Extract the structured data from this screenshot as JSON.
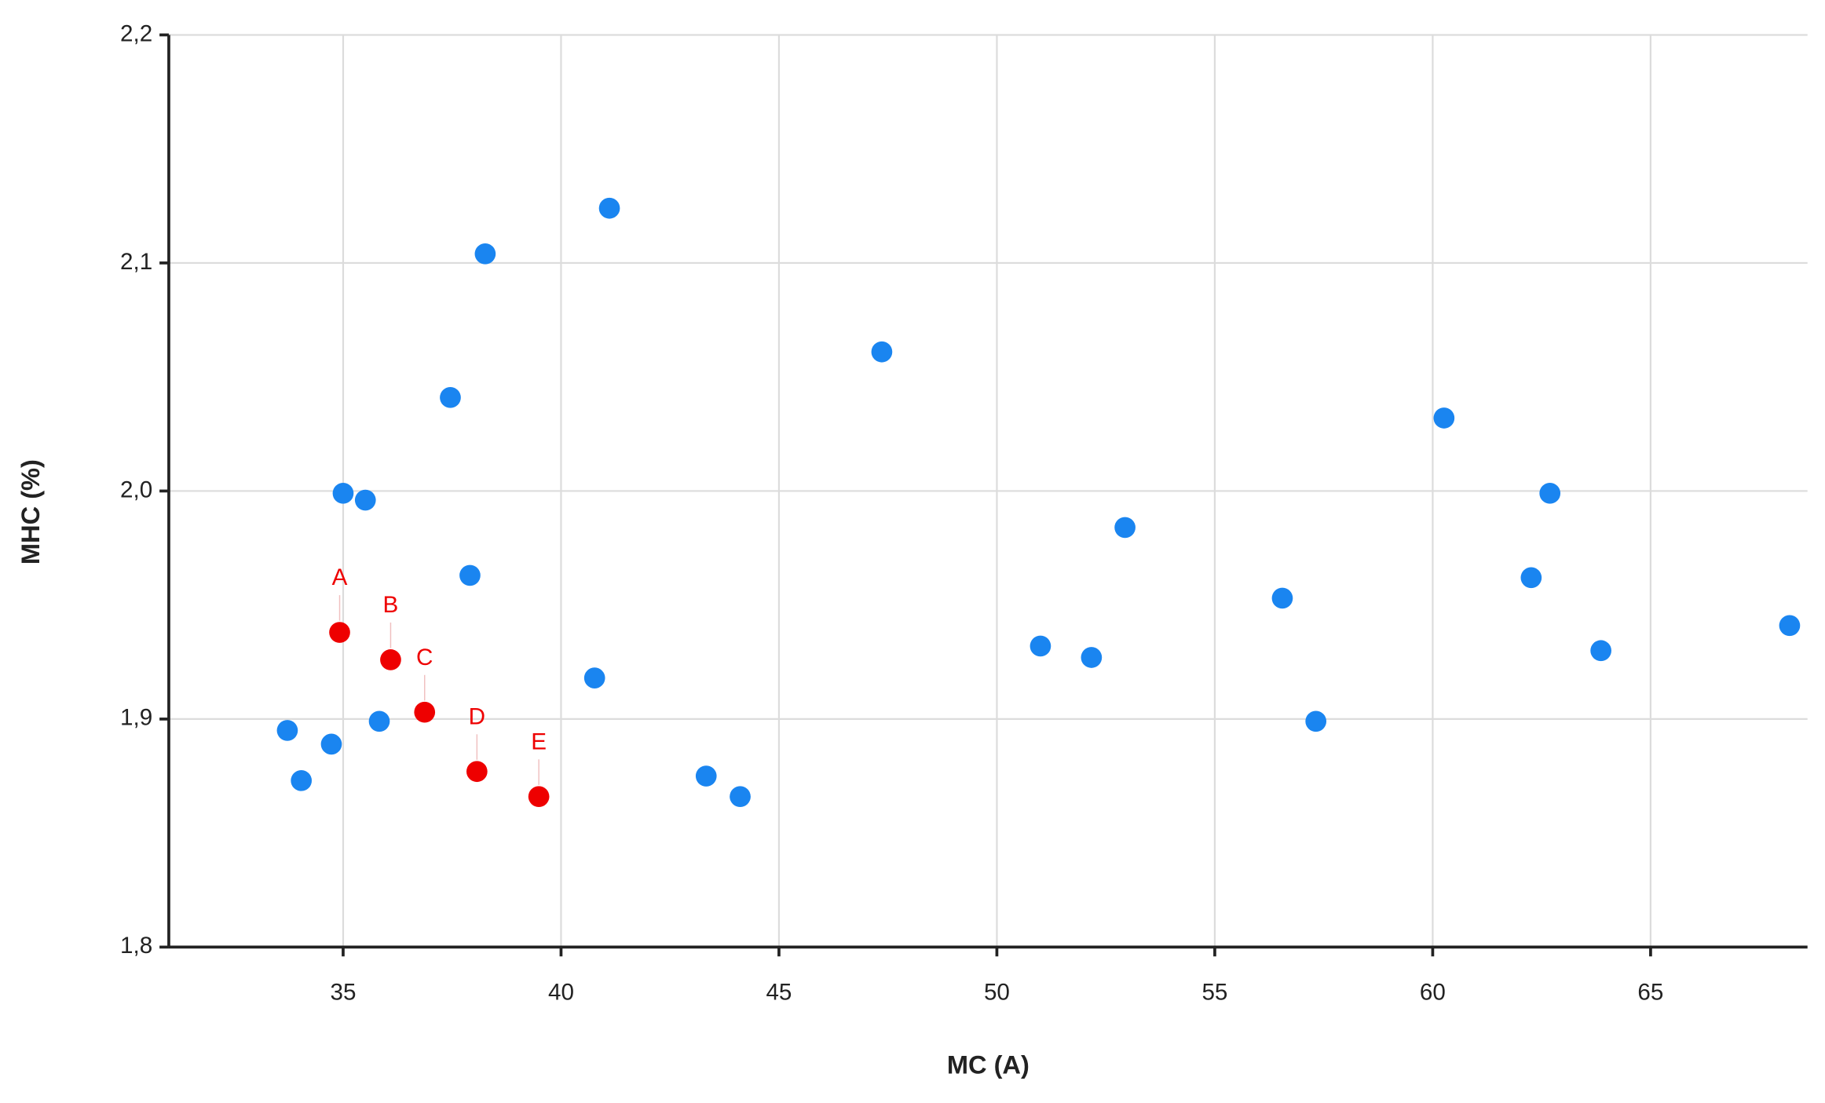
{
  "chart_data": {
    "type": "scatter",
    "x_label": "MC (A)",
    "y_label": "MHC (%)",
    "xlim": [
      31,
      68.6
    ],
    "ylim": [
      1.8,
      2.2
    ],
    "xticks": [
      35,
      40,
      45,
      50,
      55,
      60,
      65
    ],
    "yticks": [
      {
        "value": 1.8,
        "label": "1,8"
      },
      {
        "value": 1.9,
        "label": "1,9"
      },
      {
        "value": 2.0,
        "label": "2,0"
      },
      {
        "value": 2.1,
        "label": "2,1"
      },
      {
        "value": 2.2,
        "label": "2,2"
      }
    ],
    "grid": true,
    "series": [
      {
        "color": "#1a85f0",
        "x": [
          33.72,
          34.04,
          34.73,
          35.0,
          35.51,
          35.83,
          37.46,
          37.91,
          38.26,
          40.77,
          41.11,
          43.33,
          44.11,
          47.36,
          51.0,
          52.17,
          52.94,
          56.55,
          57.32,
          60.26,
          62.26,
          62.69,
          63.86,
          68.19
        ],
        "values": [
          1.895,
          1.873,
          1.889,
          1.999,
          1.996,
          1.899,
          2.041,
          1.963,
          2.104,
          1.918,
          2.124,
          1.875,
          1.866,
          2.061,
          1.932,
          1.927,
          1.984,
          1.953,
          1.899,
          2.032,
          1.962,
          1.999,
          1.93,
          1.941
        ]
      },
      {
        "color": "#ee0000",
        "x": [
          34.92,
          36.09,
          36.87,
          38.07,
          39.49
        ],
        "values": [
          1.938,
          1.926,
          1.903,
          1.877,
          1.866
        ],
        "labels": [
          "A",
          "B",
          "C",
          "D",
          "E"
        ]
      }
    ]
  }
}
